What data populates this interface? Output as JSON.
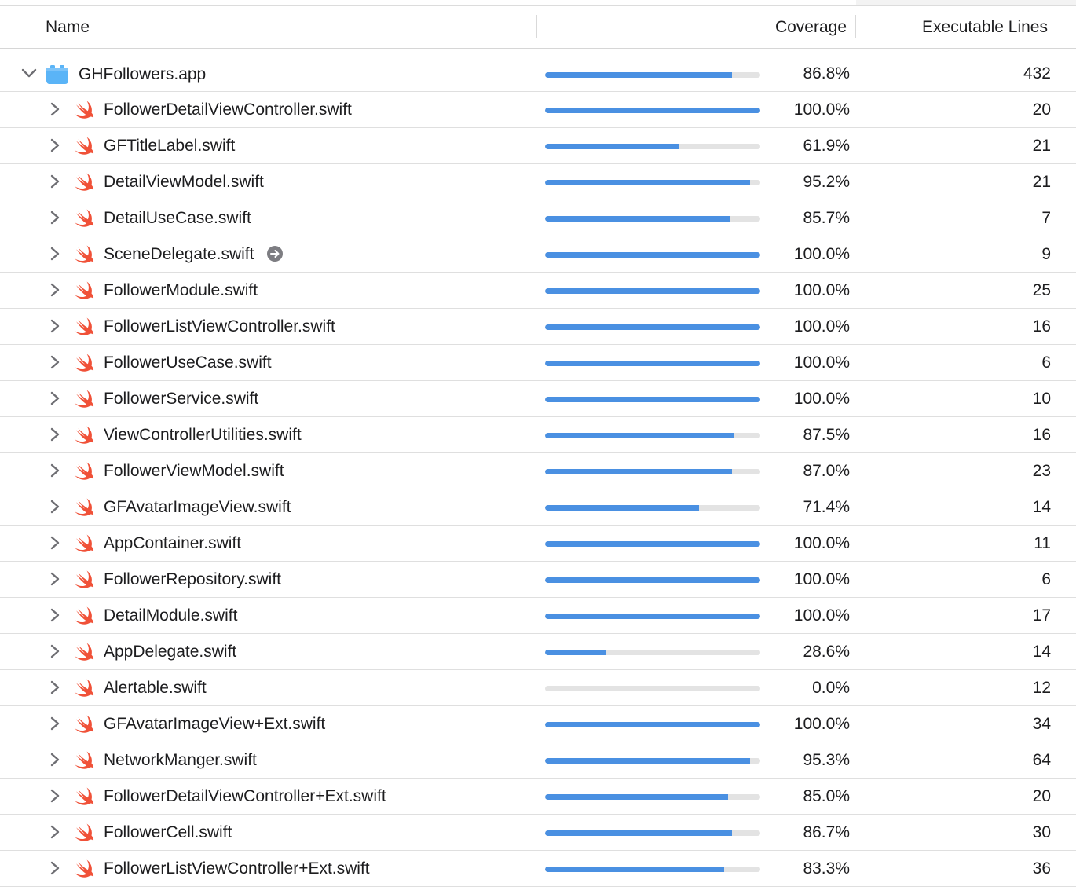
{
  "header": {
    "name": "Name",
    "coverage": "Coverage",
    "executable_lines": "Executable Lines"
  },
  "colors": {
    "bar_fill": "#4a90e2",
    "bar_track": "#e3e3e3",
    "swift_icon": "#f05138",
    "app_icon": "#5ab4f7"
  },
  "root": {
    "name": "GHFollowers.app",
    "coverage": "86.8%",
    "fraction": 0.868,
    "lines": "432",
    "expanded": true,
    "icon": "app-bundle-icon"
  },
  "files": [
    {
      "name": "FollowerDetailViewController.swift",
      "coverage": "100.0%",
      "fraction": 1.0,
      "lines": "20"
    },
    {
      "name": "GFTitleLabel.swift",
      "coverage": "61.9%",
      "fraction": 0.619,
      "lines": "21"
    },
    {
      "name": "DetailViewModel.swift",
      "coverage": "95.2%",
      "fraction": 0.952,
      "lines": "21"
    },
    {
      "name": "DetailUseCase.swift",
      "coverage": "85.7%",
      "fraction": 0.857,
      "lines": "7"
    },
    {
      "name": "SceneDelegate.swift",
      "coverage": "100.0%",
      "fraction": 1.0,
      "lines": "9",
      "reveal": true
    },
    {
      "name": "FollowerModule.swift",
      "coverage": "100.0%",
      "fraction": 1.0,
      "lines": "25"
    },
    {
      "name": "FollowerListViewController.swift",
      "coverage": "100.0%",
      "fraction": 1.0,
      "lines": "16"
    },
    {
      "name": "FollowerUseCase.swift",
      "coverage": "100.0%",
      "fraction": 1.0,
      "lines": "6"
    },
    {
      "name": "FollowerService.swift",
      "coverage": "100.0%",
      "fraction": 1.0,
      "lines": "10"
    },
    {
      "name": "ViewControllerUtilities.swift",
      "coverage": "87.5%",
      "fraction": 0.875,
      "lines": "16"
    },
    {
      "name": "FollowerViewModel.swift",
      "coverage": "87.0%",
      "fraction": 0.87,
      "lines": "23"
    },
    {
      "name": "GFAvatarImageView.swift",
      "coverage": "71.4%",
      "fraction": 0.714,
      "lines": "14"
    },
    {
      "name": "AppContainer.swift",
      "coverage": "100.0%",
      "fraction": 1.0,
      "lines": "11"
    },
    {
      "name": "FollowerRepository.swift",
      "coverage": "100.0%",
      "fraction": 1.0,
      "lines": "6"
    },
    {
      "name": "DetailModule.swift",
      "coverage": "100.0%",
      "fraction": 1.0,
      "lines": "17"
    },
    {
      "name": "AppDelegate.swift",
      "coverage": "28.6%",
      "fraction": 0.286,
      "lines": "14"
    },
    {
      "name": "Alertable.swift",
      "coverage": "0.0%",
      "fraction": 0.0,
      "lines": "12"
    },
    {
      "name": "GFAvatarImageView+Ext.swift",
      "coverage": "100.0%",
      "fraction": 1.0,
      "lines": "34"
    },
    {
      "name": "NetworkManger.swift",
      "coverage": "95.3%",
      "fraction": 0.953,
      "lines": "64"
    },
    {
      "name": "FollowerDetailViewController+Ext.swift",
      "coverage": "85.0%",
      "fraction": 0.85,
      "lines": "20"
    },
    {
      "name": "FollowerCell.swift",
      "coverage": "86.7%",
      "fraction": 0.867,
      "lines": "30"
    },
    {
      "name": "FollowerListViewController+Ext.swift",
      "coverage": "83.3%",
      "fraction": 0.833,
      "lines": "36"
    }
  ]
}
